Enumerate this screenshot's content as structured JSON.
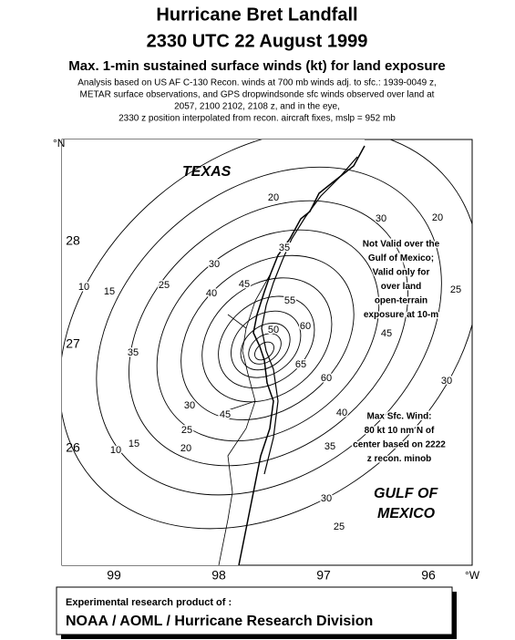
{
  "header": {
    "title": "Hurricane Bret Landfall",
    "subtitle": "2330 UTC 22 August 1999",
    "heading": "Max. 1-min sustained surface winds (kt) for land exposure",
    "description": [
      "Analysis based on US AF C-130 Recon. winds at 700 mb winds adj. to sfc.: 1939-0049 z,",
      "METAR surface observations, and GPS dropwindsonde sfc winds observed over land at",
      "2057, 2100 2102, 2108 z, and in the eye,",
      "2330 z position interpolated from recon. aircraft fixes, mslp = 952 mb"
    ]
  },
  "map": {
    "lat_unit": "°N",
    "lon_unit": "°W",
    "lat_labels": [
      "28",
      "27",
      "26"
    ],
    "lon_labels": [
      "99",
      "98",
      "97",
      "96"
    ],
    "places": [
      "TEXAS",
      "GULF OF",
      "MEXICO"
    ],
    "note_validity": [
      "Not Valid over the",
      "Gulf of Mexico;",
      "Valid only for",
      "over land",
      "open-terrain",
      "exposure at 10-m"
    ],
    "note_max": [
      "Max Sfc. Wind:",
      "80 kt 10 nm N of",
      "center based on 2222",
      "z recon. minob"
    ],
    "contour_labels": [
      "20",
      "35",
      "30",
      "25",
      "15",
      "10",
      "40",
      "45",
      "55",
      "60",
      "65",
      "60",
      "45",
      "30",
      "25",
      "20",
      "15",
      "10",
      "35",
      "40",
      "35",
      "30",
      "25",
      "45",
      "30",
      "20",
      "25",
      "30",
      "50"
    ]
  },
  "footer": {
    "line1": "Experimental research product of :",
    "line2": "NOAA / AOML / Hurricane Research Division"
  }
}
